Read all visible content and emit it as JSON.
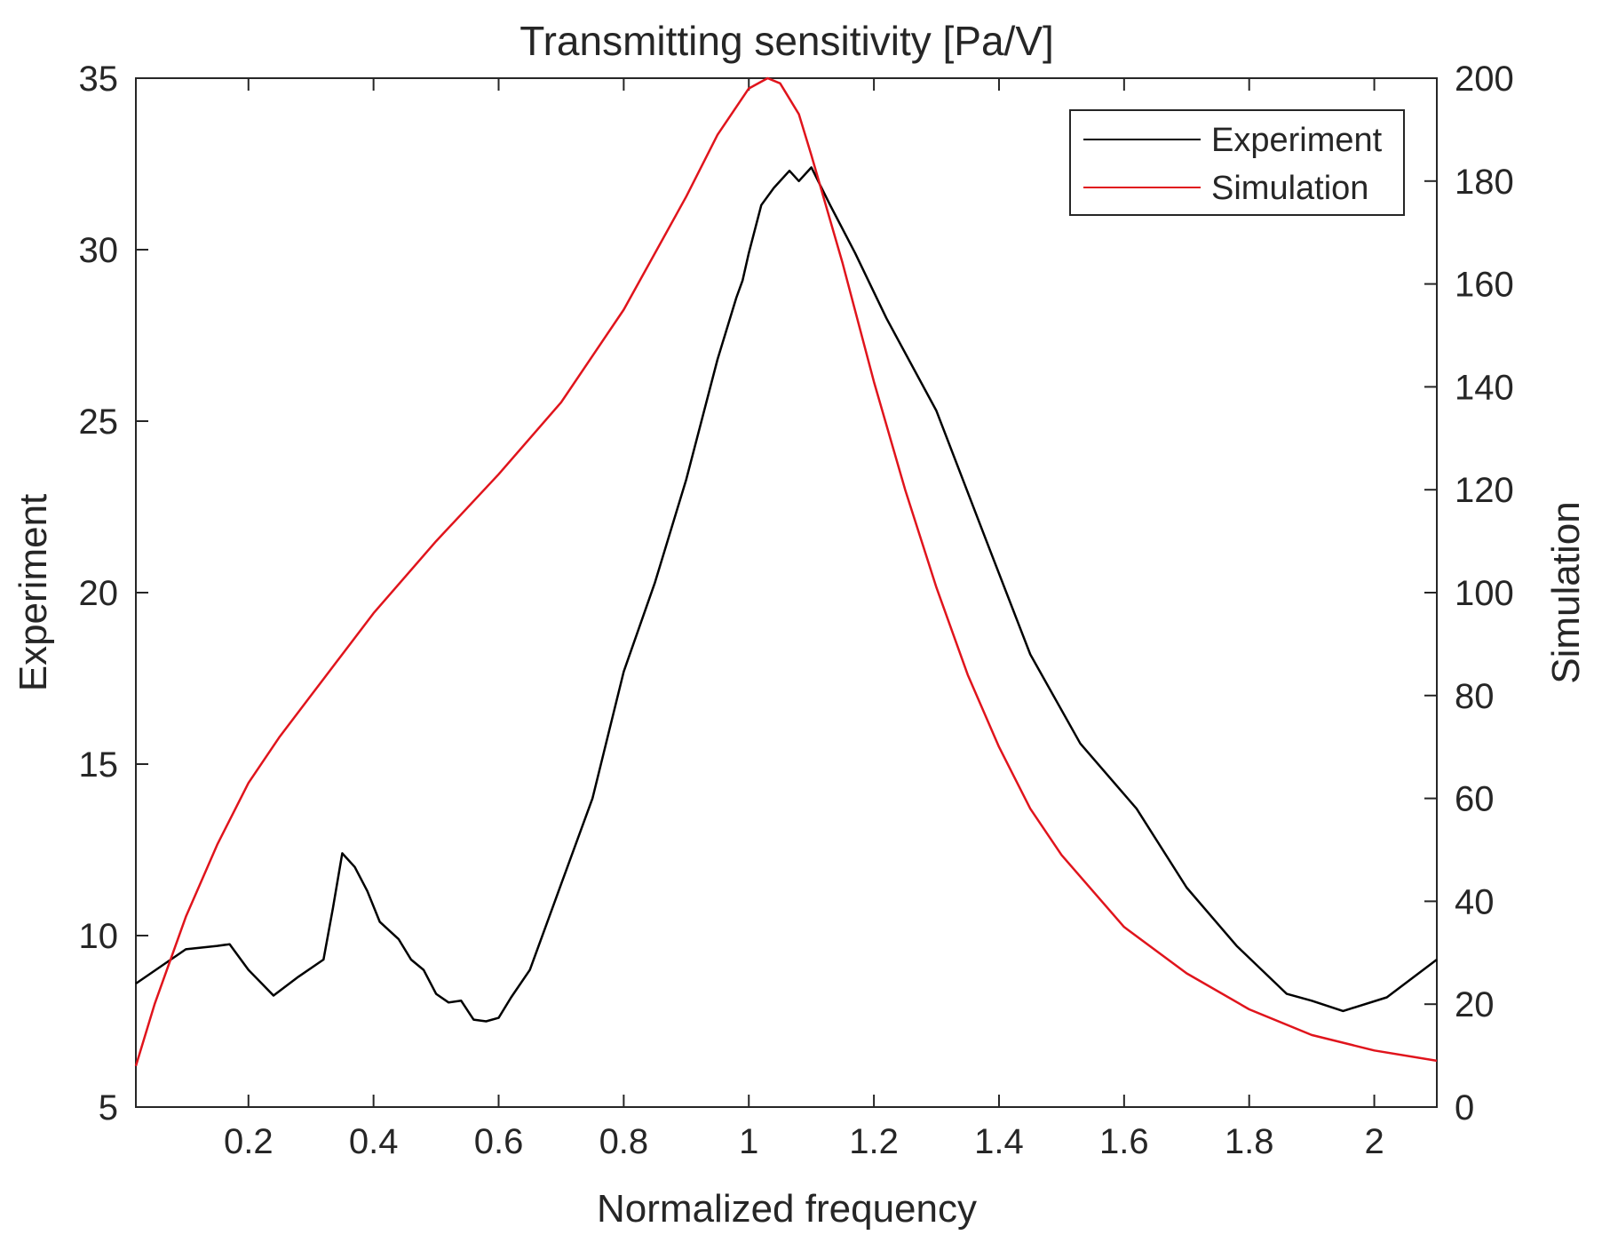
{
  "chart_data": {
    "type": "line",
    "title": "Transmitting sensitivity [Pa/V]",
    "xlabel": "Normalized frequency",
    "ylabel_left": "Experiment",
    "ylabel_right": "Simulation",
    "xlim": [
      0.02,
      2.1
    ],
    "ylim_left": [
      5,
      35
    ],
    "ylim_right": [
      0,
      200
    ],
    "x_ticks": [
      0.2,
      0.4,
      0.6,
      0.8,
      1,
      1.2,
      1.4,
      1.6,
      1.8,
      2
    ],
    "x_tick_labels": [
      "0.2",
      "0.4",
      "0.6",
      "0.8",
      "1",
      "1.2",
      "1.4",
      "1.6",
      "1.8",
      "2"
    ],
    "y_left_ticks": [
      5,
      10,
      15,
      20,
      25,
      30,
      35
    ],
    "y_left_tick_labels": [
      "5",
      "10",
      "15",
      "20",
      "25",
      "30",
      "35"
    ],
    "y_right_ticks": [
      0,
      20,
      40,
      60,
      80,
      100,
      120,
      140,
      160,
      180,
      200
    ],
    "y_right_tick_labels": [
      "0",
      "20",
      "40",
      "60",
      "80",
      "100",
      "120",
      "140",
      "160",
      "180",
      "200"
    ],
    "grid": false,
    "legend_position": "top-right",
    "series": [
      {
        "name": "Experiment",
        "axis": "left",
        "color": "#000000",
        "x": [
          0.02,
          0.1,
          0.15,
          0.17,
          0.2,
          0.24,
          0.28,
          0.32,
          0.335,
          0.35,
          0.37,
          0.39,
          0.41,
          0.44,
          0.46,
          0.48,
          0.5,
          0.52,
          0.54,
          0.56,
          0.58,
          0.6,
          0.62,
          0.65,
          0.7,
          0.75,
          0.8,
          0.85,
          0.9,
          0.95,
          0.98,
          0.99,
          1.0,
          1.02,
          1.04,
          1.065,
          1.08,
          1.1,
          1.13,
          1.17,
          1.22,
          1.3,
          1.38,
          1.45,
          1.53,
          1.62,
          1.7,
          1.78,
          1.86,
          1.9,
          1.95,
          2.02,
          2.1
        ],
        "y": [
          8.6,
          9.6,
          9.7,
          9.75,
          9.0,
          8.25,
          8.8,
          9.3,
          10.8,
          12.4,
          12.0,
          11.3,
          10.4,
          9.9,
          9.3,
          9.0,
          8.3,
          8.05,
          8.1,
          7.55,
          7.5,
          7.6,
          8.2,
          9.0,
          11.5,
          14.0,
          17.7,
          20.3,
          23.3,
          26.8,
          28.6,
          29.1,
          29.9,
          31.3,
          31.8,
          32.3,
          32.0,
          32.4,
          31.3,
          29.9,
          28.0,
          25.3,
          21.5,
          18.2,
          15.6,
          13.7,
          11.4,
          9.7,
          8.3,
          8.1,
          7.8,
          8.2,
          9.3
        ]
      },
      {
        "name": "Simulation",
        "axis": "right",
        "color": "#e0141c",
        "x": [
          0.02,
          0.05,
          0.1,
          0.15,
          0.2,
          0.25,
          0.3,
          0.4,
          0.5,
          0.6,
          0.7,
          0.8,
          0.9,
          0.95,
          1.0,
          1.03,
          1.05,
          1.08,
          1.1,
          1.15,
          1.2,
          1.25,
          1.3,
          1.35,
          1.4,
          1.45,
          1.5,
          1.6,
          1.7,
          1.8,
          1.9,
          2.0,
          2.1
        ],
        "y": [
          8,
          20,
          37,
          51,
          63,
          72,
          80,
          96,
          110,
          123,
          137,
          155,
          177,
          189,
          198,
          200,
          199,
          193,
          185,
          164,
          141,
          120,
          101,
          84,
          70,
          58,
          49,
          35,
          26,
          19,
          14,
          11,
          9
        ]
      }
    ]
  }
}
